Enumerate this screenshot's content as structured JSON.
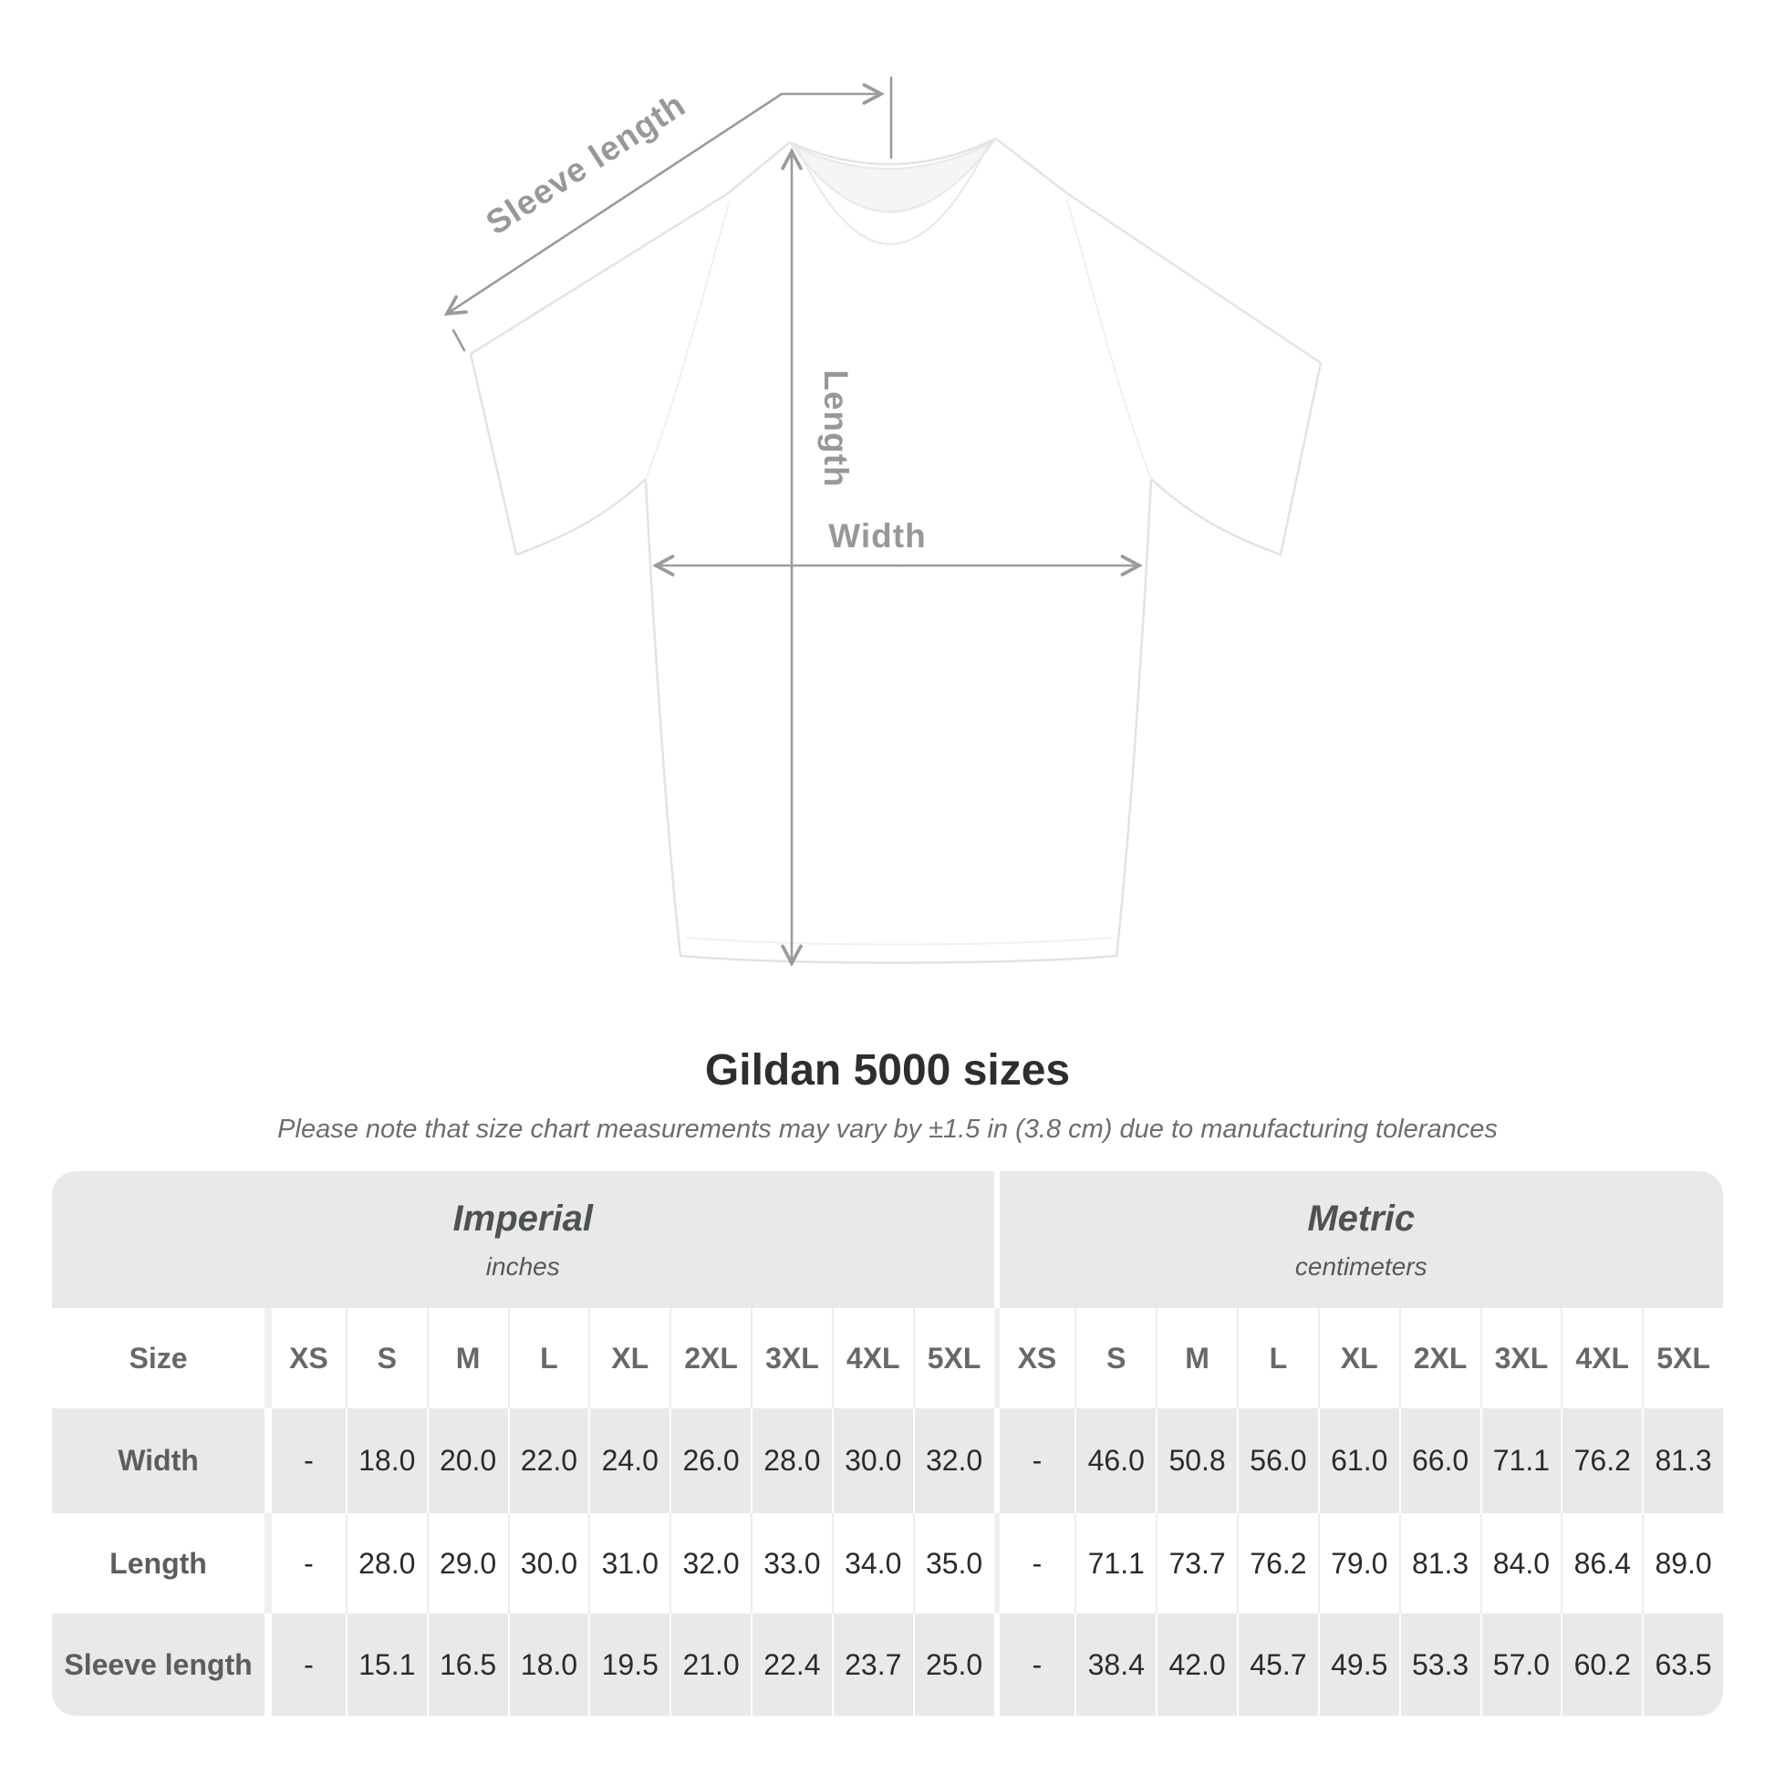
{
  "diagram": {
    "sleeve_length_label": "Sleeve length",
    "length_label": "Length",
    "width_label": "Width"
  },
  "header": {
    "title": "Gildan 5000 sizes",
    "subtitle": "Please note that size chart measurements may vary by ±1.5 in (3.8 cm) due to manufacturing tolerances"
  },
  "size_chart": {
    "unit_groups": [
      {
        "label": "Imperial",
        "sublabel": "inches"
      },
      {
        "label": "Metric",
        "sublabel": "centimeters"
      }
    ],
    "size_column_header": "Size",
    "sizes": [
      "XS",
      "S",
      "M",
      "L",
      "XL",
      "2XL",
      "3XL",
      "4XL",
      "5XL"
    ],
    "rows": [
      {
        "label": "Width",
        "imperial": [
          "-",
          "18.0",
          "20.0",
          "22.0",
          "24.0",
          "26.0",
          "28.0",
          "30.0",
          "32.0"
        ],
        "metric": [
          "-",
          "46.0",
          "50.8",
          "56.0",
          "61.0",
          "66.0",
          "71.1",
          "76.2",
          "81.3"
        ]
      },
      {
        "label": "Length",
        "imperial": [
          "-",
          "28.0",
          "29.0",
          "30.0",
          "31.0",
          "32.0",
          "33.0",
          "34.0",
          "35.0"
        ],
        "metric": [
          "-",
          "71.1",
          "73.7",
          "76.2",
          "79.0",
          "81.3",
          "84.0",
          "86.4",
          "89.0"
        ]
      },
      {
        "label": "Sleeve length",
        "imperial": [
          "-",
          "15.1",
          "16.5",
          "18.0",
          "19.5",
          "21.0",
          "22.4",
          "23.7",
          "25.0"
        ],
        "metric": [
          "-",
          "38.4",
          "42.0",
          "45.7",
          "49.5",
          "53.3",
          "57.0",
          "60.2",
          "63.5"
        ]
      }
    ]
  },
  "chart_data": {
    "type": "table",
    "title": "Gildan 5000 sizes",
    "note": "Measurements may vary by ±1.5 in (3.8 cm) due to manufacturing tolerances",
    "column_groups": [
      "Imperial (inches)",
      "Metric (centimeters)"
    ],
    "columns": [
      "Size",
      "XS",
      "S",
      "M",
      "L",
      "XL",
      "2XL",
      "3XL",
      "4XL",
      "5XL",
      "XS",
      "S",
      "M",
      "L",
      "XL",
      "2XL",
      "3XL",
      "4XL",
      "5XL"
    ],
    "rows": [
      [
        "Width",
        null,
        18.0,
        20.0,
        22.0,
        24.0,
        26.0,
        28.0,
        30.0,
        32.0,
        null,
        46.0,
        50.8,
        56.0,
        61.0,
        66.0,
        71.1,
        76.2,
        81.3
      ],
      [
        "Length",
        null,
        28.0,
        29.0,
        30.0,
        31.0,
        32.0,
        33.0,
        34.0,
        35.0,
        null,
        71.1,
        73.7,
        76.2,
        79.0,
        81.3,
        84.0,
        86.4,
        89.0
      ],
      [
        "Sleeve length",
        null,
        15.1,
        16.5,
        18.0,
        19.5,
        21.0,
        22.4,
        23.7,
        25.0,
        null,
        38.4,
        42.0,
        45.7,
        49.5,
        53.3,
        57.0,
        60.2,
        63.5
      ]
    ]
  },
  "colors": {
    "annotation_gray": "#9a9b9d",
    "table_band_gray": "#e9e9e9",
    "alt_row_gray": "#e9e9e9",
    "title_text": "#2e2e2e",
    "value_text": "#2b2b2b",
    "header_text": "#66686b"
  }
}
